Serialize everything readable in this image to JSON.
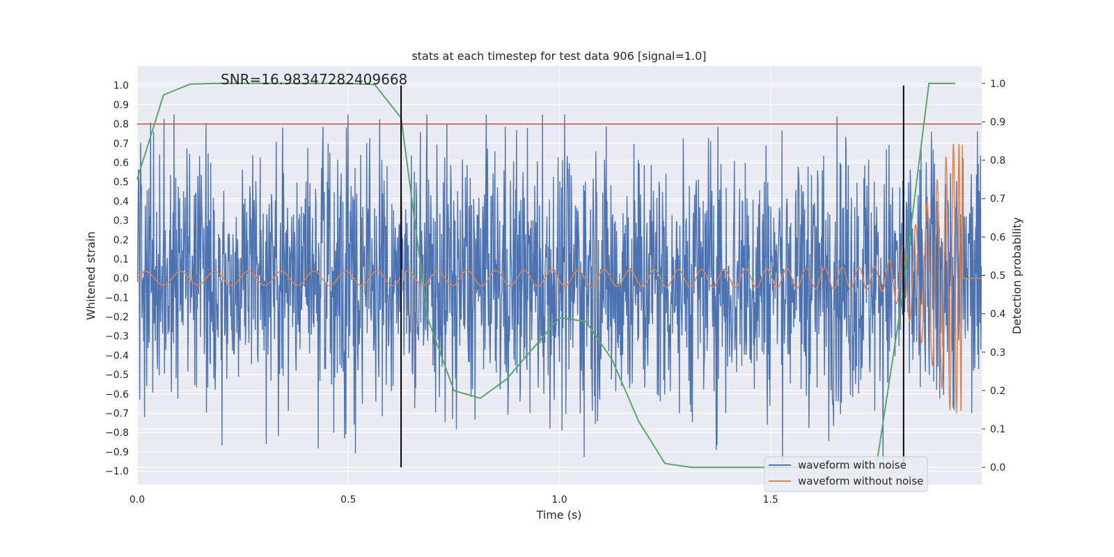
{
  "chart_data": {
    "type": "line",
    "title": "stats at each timestep for test data 906 [signal=1.0]",
    "xlabel": "Time (s)",
    "ylabel": "Whitened strain",
    "y2label": "Detection probability",
    "xlim": [
      0.0,
      2.0
    ],
    "ylim": [
      -1.07,
      1.1
    ],
    "y2lim": [
      -0.045,
      1.045
    ],
    "xticks": [
      0.0,
      0.5,
      1.0,
      1.5
    ],
    "xtick_labels": [
      "0.0",
      "0.5",
      "1.0",
      "1.5"
    ],
    "yticks": [
      1.0,
      0.9,
      0.8,
      0.7,
      0.6,
      0.5,
      0.4,
      0.3,
      0.2,
      0.1,
      0.0,
      -0.1,
      -0.2,
      -0.3,
      -0.4,
      -0.5,
      -0.6,
      -0.7,
      -0.8,
      -0.9,
      -1.0
    ],
    "ytick_labels": [
      "1.0",
      "0.9",
      "0.8",
      "0.7",
      "0.6",
      "0.5",
      "0.4",
      "0.3",
      "0.2",
      "0.1",
      "0.0",
      "−0.1",
      "−0.2",
      "−0.3",
      "−0.4",
      "−0.5",
      "−0.6",
      "−0.7",
      "−0.8",
      "−0.9",
      "−1.0"
    ],
    "y2ticks": [
      1.0,
      0.9,
      0.8,
      0.7,
      0.6,
      0.5,
      0.4,
      0.3,
      0.2,
      0.1,
      0.0
    ],
    "y2tick_labels": [
      "1.0",
      "0.9",
      "0.8",
      "0.7",
      "0.6",
      "0.5",
      "0.4",
      "0.3",
      "0.2",
      "0.1",
      "0.0"
    ],
    "annotation": "SNR=16.98347282409668",
    "annotation_at": [
      0.2,
      1.0
    ],
    "threshold": {
      "y": 0.8,
      "color": "#c44e52"
    },
    "vlines": [
      {
        "x": 0.625,
        "ymin": -0.98,
        "ymax": 1.0
      },
      {
        "x": 1.815,
        "ymin": -0.98,
        "ymax": 1.0
      }
    ],
    "series": [
      {
        "name": "waveform with noise",
        "color": "#4c72b0",
        "axis": "left",
        "kind": "noise",
        "n_samples": 1950,
        "t_end": 2.0,
        "amplitude_range": [
          -0.97,
          0.85
        ]
      },
      {
        "name": "waveform without noise",
        "color": "#dd8452",
        "axis": "left",
        "kind": "chirp",
        "t_end": 1.965,
        "merger_t": 1.955,
        "peak_amplitude": 0.7
      },
      {
        "name": "detection probability",
        "color": "#55a868",
        "axis": "right",
        "x": [
          0.0,
          0.0625,
          0.125,
          0.1875,
          0.25,
          0.3125,
          0.375,
          0.4375,
          0.5,
          0.5625,
          0.625,
          0.6875,
          0.75,
          0.8125,
          0.875,
          0.9375,
          1.0,
          1.0625,
          1.125,
          1.1875,
          1.25,
          1.3125,
          1.375,
          1.4375,
          1.5,
          1.5625,
          1.625,
          1.6875,
          1.75,
          1.8125,
          1.875,
          1.9375
        ],
        "values": [
          0.75,
          0.97,
          0.998,
          1.0,
          1.0,
          1.0,
          1.0,
          1.0,
          1.0,
          0.997,
          0.91,
          0.39,
          0.2,
          0.18,
          0.23,
          0.31,
          0.39,
          0.38,
          0.28,
          0.12,
          0.01,
          0.0,
          0.0,
          0.0,
          0.0,
          0.0,
          0.0,
          0.0,
          0.0,
          0.45,
          1.0,
          1.0
        ]
      }
    ],
    "legend": {
      "placement": "lower-right",
      "entries": [
        "waveform with noise",
        "waveform without noise"
      ]
    },
    "grid": true,
    "colors": {
      "background": "#eaeaf2",
      "grid": "#ffffff",
      "noise": "#4c72b0",
      "clean": "#dd8452",
      "prob": "#55a868",
      "threshold": "#c44e52",
      "vline": "#000000"
    }
  }
}
